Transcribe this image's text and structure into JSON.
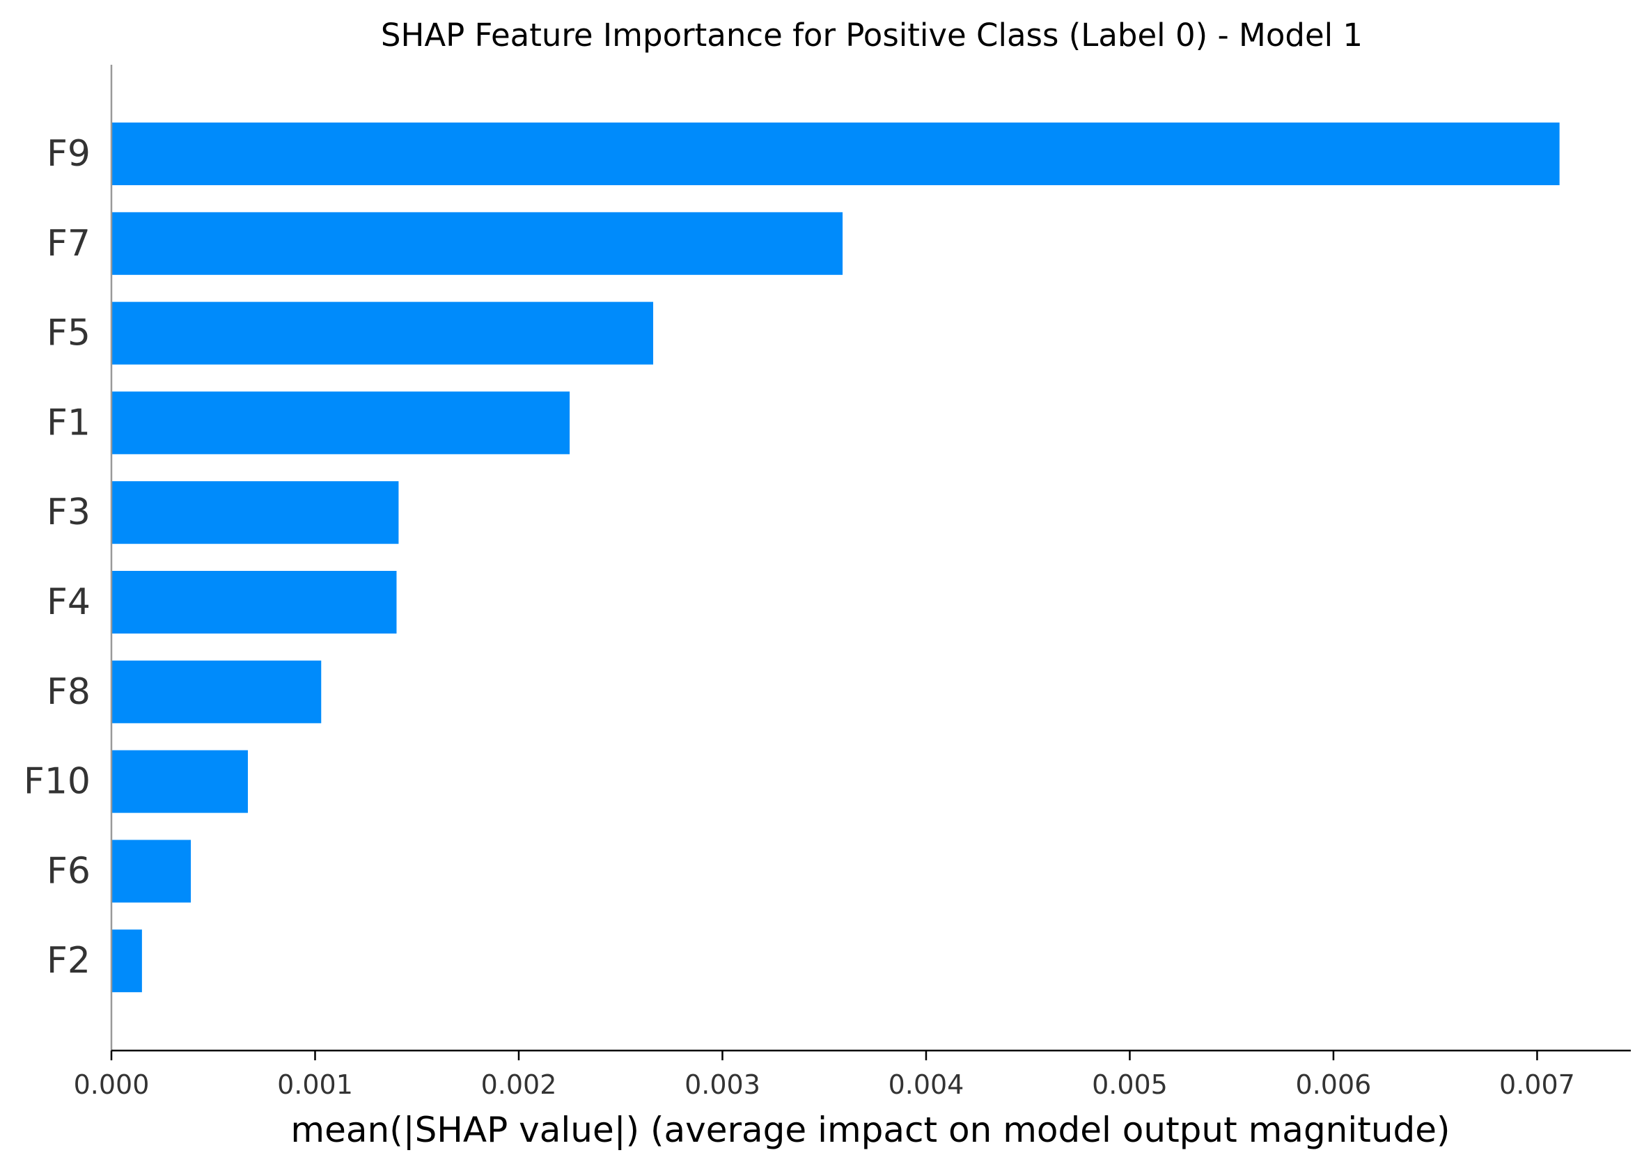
{
  "chart_data": {
    "type": "bar",
    "orientation": "horizontal",
    "title": "SHAP Feature Importance for Positive Class (Label 0) - Model 1",
    "xlabel": "mean(|SHAP value|) (average impact on model output magnitude)",
    "ylabel": "",
    "categories": [
      "F9",
      "F7",
      "F5",
      "F1",
      "F3",
      "F4",
      "F8",
      "F10",
      "F6",
      "F2"
    ],
    "values": [
      0.00711,
      0.00359,
      0.00266,
      0.00225,
      0.00141,
      0.0014,
      0.00103,
      0.00067,
      0.00039,
      0.00015
    ],
    "xlim": [
      0,
      0.00746
    ],
    "xticks": [
      0,
      0.001,
      0.002,
      0.003,
      0.004,
      0.005,
      0.006,
      0.007
    ],
    "xtick_labels": [
      "0.000",
      "0.001",
      "0.002",
      "0.003",
      "0.004",
      "0.005",
      "0.006",
      "0.007"
    ],
    "bar_color": "#008bfb",
    "grid": false,
    "legend": "none"
  }
}
